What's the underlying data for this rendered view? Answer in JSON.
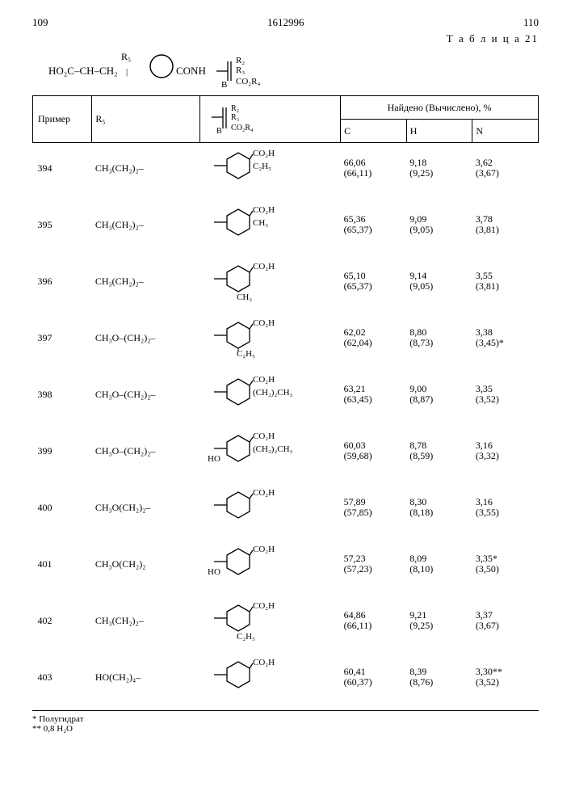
{
  "page": {
    "left_num": "109",
    "center_num": "1612996",
    "right_num": "110",
    "table_label": "Т а б л и ц а 21",
    "formula_main": "HO₂C–CH–CH₂  CONH",
    "formula_r5": "R₅",
    "formula_r2": "R₂",
    "formula_r3": "R₃",
    "formula_co2r4": "CO₂R₄",
    "formula_b": "B"
  },
  "headers": {
    "example": "Пример",
    "r5": "R₅",
    "struct_r2": "R₂",
    "struct_r3": "R₃",
    "struct_b": "B",
    "struct_co2r4": "CO₂R₄",
    "found_calc": "Найдено (Вычислено), %",
    "c": "C",
    "h": "H",
    "n": "N"
  },
  "rows": [
    {
      "ex": "394",
      "r5": "CH₃(CH₂)₂–",
      "struct": "cyclohex-CO2H-C2H5",
      "c": "66,06",
      "cc": "(66,11)",
      "h": "9,18",
      "hc": "(9,25)",
      "n": "3,62",
      "nc": "(3,67)"
    },
    {
      "ex": "395",
      "r5": "CH₃(CH₂)₂–",
      "struct": "cyclohex-CO2H-CH3",
      "c": "65,36",
      "cc": "(65,37)",
      "h": "9,09",
      "hc": "(9,05)",
      "n": "3,78",
      "nc": "(3,81)"
    },
    {
      "ex": "396",
      "r5": "CH₃(CH₂)₂–",
      "struct": "cyclohex-CO2H-CH3-down",
      "c": "65,10",
      "cc": "(65,37)",
      "h": "9,14",
      "hc": "(9,05)",
      "n": "3,55",
      "nc": "(3,81)"
    },
    {
      "ex": "397",
      "r5": "CH₃O–(CH₂)₂–",
      "struct": "cyclohex-CO2H-C2H5-down",
      "c": "62,02",
      "cc": "(62,04)",
      "h": "8,80",
      "hc": "(8,73)",
      "n": "3,38",
      "nc": "(3,45)*"
    },
    {
      "ex": "398",
      "r5": "CH₃O–(CH₂)₂–",
      "struct": "cyclohex-CO2H-CH2-2CH3",
      "c": "63,21",
      "cc": "(63,45)",
      "h": "9,00",
      "hc": "(8,87)",
      "n": "3,35",
      "nc": "(3,52)"
    },
    {
      "ex": "399",
      "r5": "CH₃O–(CH₂)₂–",
      "struct": "cyclohex-CO2H-CH2-2CH3-HO",
      "c": "60,03",
      "cc": "(59,68)",
      "h": "8,78",
      "hc": "(8,59)",
      "n": "3,16",
      "nc": "(3,32)"
    },
    {
      "ex": "400",
      "r5": "CH₃O(CH₂)₂–",
      "struct": "cyclohex-CO2H-plain",
      "c": "57,89",
      "cc": "(57,85)",
      "h": "8,30",
      "hc": "(8,18)",
      "n": "3,16",
      "nc": "(3,55)"
    },
    {
      "ex": "401",
      "r5": "CH₃O(CH₂)₂",
      "struct": "cyclohex-CO2H-HO",
      "c": "57,23",
      "cc": "(57,23)",
      "h": "8,09",
      "hc": "(8,10)",
      "n": "3,35*",
      "nc": "(3,50)"
    },
    {
      "ex": "402",
      "r5": "CH₃(CH₂)₂–",
      "struct": "cyclohex-CO2H-C2H5-2",
      "c": "64,86",
      "cc": "(66,11)",
      "h": "9,21",
      "hc": "(9,25)",
      "n": "3,37",
      "nc": "(3,67)"
    },
    {
      "ex": "403",
      "r5": "HO(CH₂)₄–",
      "struct": "cyclohex-CO2H-plain2",
      "c": "60,41",
      "cc": "(60,37)",
      "h": "8,39",
      "hc": "(8,76)",
      "n": "3,30**",
      "nc": "(3,52)"
    }
  ],
  "footnotes": {
    "f1": "* Полугидрат",
    "f2": "** 0,8 H₂O"
  },
  "style": {
    "font_main": 13,
    "font_table": 12,
    "font_sub": 9,
    "font_foot": 11,
    "border_color": "#000000",
    "bg": "#ffffff",
    "text": "#000000"
  }
}
